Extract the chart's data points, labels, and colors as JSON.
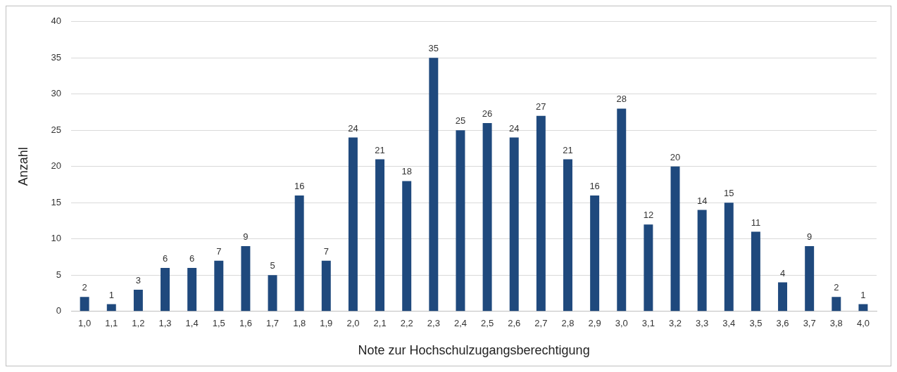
{
  "chart_data": {
    "type": "bar",
    "xlabel": "Note zur Hochschulzugangsberechtigung",
    "ylabel": "Anzahl",
    "categories": [
      "1,0",
      "1,1",
      "1,2",
      "1,3",
      "1,4",
      "1,5",
      "1,6",
      "1,7",
      "1,8",
      "1,9",
      "2,0",
      "2,1",
      "2,2",
      "2,3",
      "2,4",
      "2,5",
      "2,6",
      "2,7",
      "2,8",
      "2,9",
      "3,0",
      "3,1",
      "3,2",
      "3,3",
      "3,4",
      "3,5",
      "3,6",
      "3,7",
      "3,8",
      "4,0"
    ],
    "values": [
      2,
      1,
      3,
      6,
      6,
      7,
      9,
      5,
      16,
      7,
      24,
      21,
      18,
      35,
      25,
      26,
      24,
      27,
      21,
      16,
      28,
      12,
      20,
      14,
      15,
      11,
      4,
      9,
      2,
      1
    ],
    "color": "#1f497d",
    "ylim": [
      0,
      40
    ],
    "yticks": [
      0,
      5,
      10,
      15,
      20,
      25,
      30,
      35,
      40
    ],
    "grid": "y",
    "data_labels": true
  }
}
